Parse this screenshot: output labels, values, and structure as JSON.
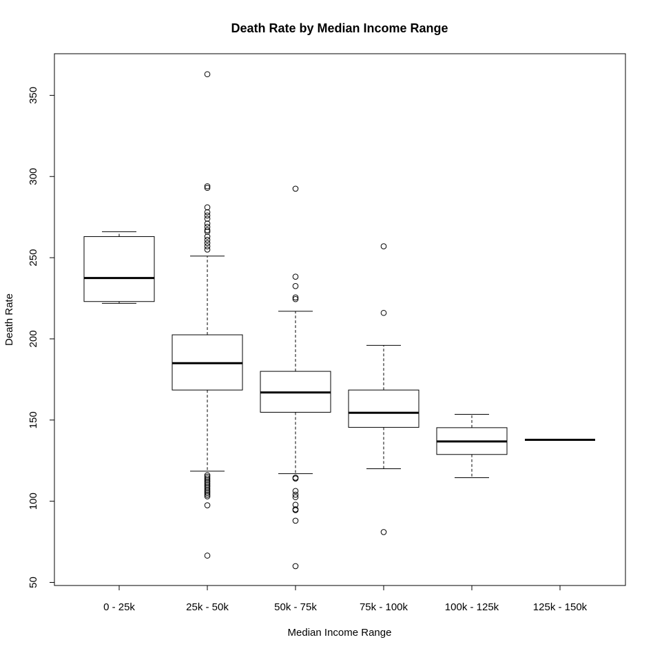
{
  "chart_data": {
    "type": "boxplot",
    "title": "Death Rate by Median Income Range",
    "xlabel": "Median Income Range",
    "ylabel": "Death Rate",
    "ylim": [
      50,
      370
    ],
    "yticks": [
      50,
      100,
      150,
      200,
      250,
      300,
      350
    ],
    "categories": [
      "0 - 25k",
      "25k - 50k",
      "50k - 75k",
      "75k - 100k",
      "100k - 125k",
      "125k - 150k"
    ],
    "boxes": [
      {
        "category": "0 - 25k",
        "whisker_low": 221.9,
        "q1": 223,
        "median": 237.5,
        "q3": 263,
        "whisker_high": 266,
        "outliers": []
      },
      {
        "category": "25k - 50k",
        "whisker_low": 118.5,
        "q1": 168.5,
        "median": 185,
        "q3": 202.5,
        "whisker_high": 251,
        "outliers": [
          363,
          294,
          293,
          281,
          278,
          276,
          274,
          271,
          269,
          267,
          266,
          263,
          261,
          259,
          257,
          255,
          116,
          115,
          114,
          113,
          112,
          111,
          110,
          109,
          108,
          107,
          106,
          105,
          104,
          103,
          97.5,
          66.5
        ]
      },
      {
        "category": "50k - 75k",
        "whisker_low": 117,
        "q1": 154.8,
        "median": 167,
        "q3": 180,
        "whisker_high": 217,
        "outliers": [
          292.5,
          238.3,
          232.5,
          225.5,
          224.5,
          114.5,
          114,
          106.3,
          104,
          102.5,
          97.8,
          95,
          94.5,
          88,
          60
        ]
      },
      {
        "category": "75k - 100k",
        "whisker_low": 120,
        "q1": 145.5,
        "median": 154.5,
        "q3": 168.5,
        "whisker_high": 196,
        "outliers": [
          257,
          216,
          81
        ]
      },
      {
        "category": "100k - 125k",
        "whisker_low": 114.5,
        "q1": 128.8,
        "median": 136.8,
        "q3": 145.3,
        "whisker_high": 153.5,
        "outliers": []
      },
      {
        "category": "125k - 150k",
        "whisker_low": 137.8,
        "q1": 137.8,
        "median": 137.8,
        "q3": 137.8,
        "whisker_high": 137.8,
        "outliers": []
      }
    ],
    "grid": false,
    "legend": "none",
    "colors": {
      "box_fill": "#ffffff",
      "stroke": "#000000"
    }
  }
}
